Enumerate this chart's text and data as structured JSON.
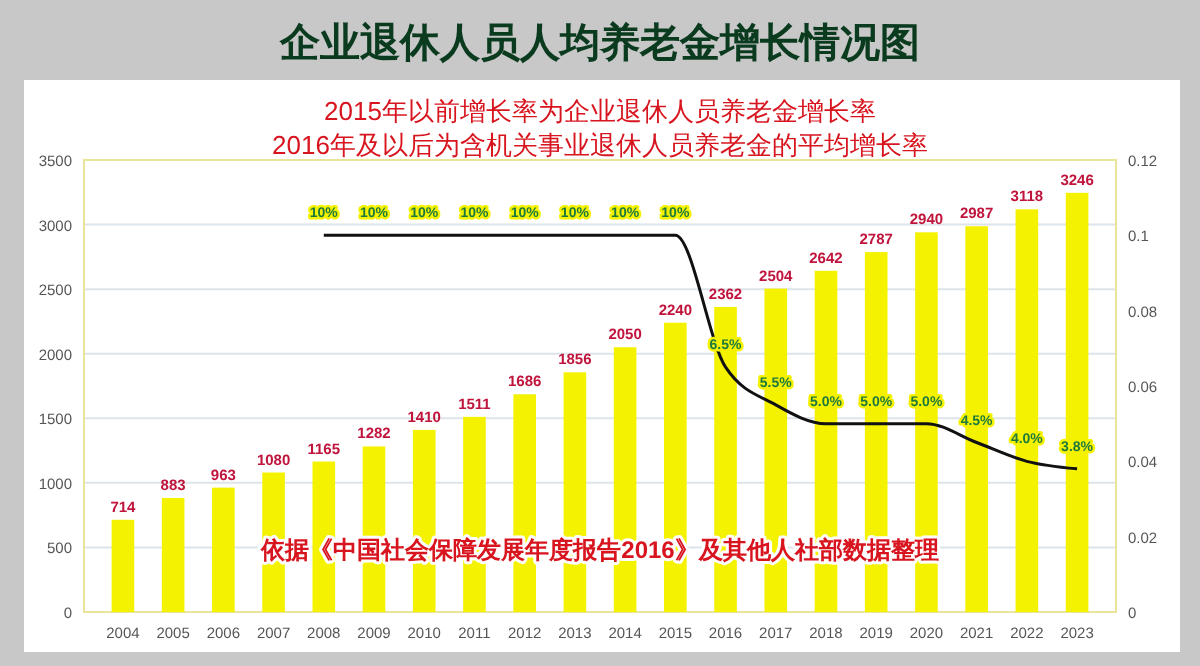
{
  "chart_data": {
    "type": "bar",
    "title": "企业退休人员人均养老金增长情况图",
    "subtitle": "2015年以前增长率为企业退休人员养老金增长率\n2016年及以后为含机关事业退休人员养老金的平均增长率",
    "categories": [
      "2004",
      "2005",
      "2006",
      "2007",
      "2008",
      "2009",
      "2010",
      "2011",
      "2012",
      "2013",
      "2014",
      "2015",
      "2016",
      "2017",
      "2018",
      "2019",
      "2020",
      "2021",
      "2022",
      "2023"
    ],
    "series": [
      {
        "color": "#f5f200",
        "values": [
          714,
          883,
          963,
          1080,
          1165,
          1282,
          1410,
          1511,
          1686,
          1856,
          2050,
          2240,
          2362,
          2504,
          2642,
          2787,
          2940,
          2987,
          3118,
          3246
        ],
        "value_labels": [
          "714",
          "883",
          "963",
          "1080",
          "1165",
          "1282",
          "1410",
          "1511",
          "1686",
          "1856",
          "2050",
          "2240",
          "2362",
          "2504",
          "2642",
          "2787",
          "2940",
          "2987",
          "3118",
          "3246"
        ]
      },
      {
        "type": "line",
        "axis": "y2",
        "color": "#111111",
        "values": [
          null,
          null,
          null,
          null,
          0.1,
          0.1,
          0.1,
          0.1,
          0.1,
          0.1,
          0.1,
          0.1,
          0.065,
          0.055,
          0.05,
          0.05,
          0.05,
          0.045,
          0.04,
          0.038
        ],
        "value_labels": [
          null,
          null,
          null,
          null,
          "10%",
          "10%",
          "10%",
          "10%",
          "10%",
          "10%",
          "10%",
          "10%",
          "6.5%",
          "5.5%",
          "5.0%",
          "5.0%",
          "5.0%",
          "4.5%",
          "4.0%",
          "3.8%"
        ]
      }
    ],
    "ylim": [
      0,
      3500
    ],
    "yticks": [
      0,
      500,
      1000,
      1500,
      2000,
      2500,
      3000,
      3500
    ],
    "y2lim": [
      0,
      0.12
    ],
    "y2ticks": [
      0,
      0.02,
      0.04,
      0.06,
      0.08,
      0.1,
      0.12
    ],
    "grid": "y",
    "marker": "none",
    "line_style": "solid",
    "annotations": [
      "依据《中国社会保障发展年度报告2016》及其他人社部数据整理"
    ]
  }
}
